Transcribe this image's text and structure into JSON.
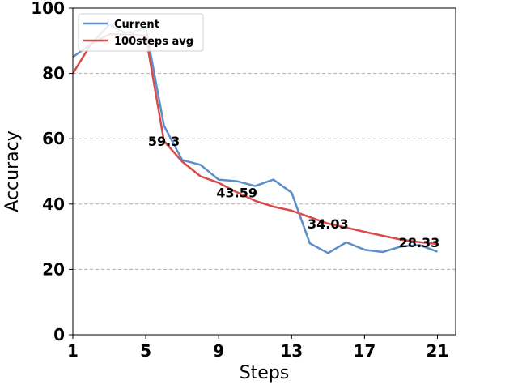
{
  "chart_data": {
    "type": "line",
    "xlabel": "Steps",
    "ylabel": "Accuracy",
    "xlim": [
      1,
      22
    ],
    "ylim": [
      0,
      100
    ],
    "xticks": [
      1,
      5,
      9,
      13,
      17,
      21
    ],
    "yticks": [
      0,
      20,
      40,
      60,
      80,
      100
    ],
    "grid": "horizontal dashed",
    "legend_position": "top-left",
    "x": [
      1,
      2,
      3,
      4,
      5,
      6,
      7,
      8,
      9,
      10,
      11,
      12,
      13,
      14,
      15,
      16,
      17,
      18,
      19,
      20,
      21
    ],
    "series": [
      {
        "name": "Current",
        "color": "#5b8fc9",
        "values": [
          85,
          89,
          95,
          92,
          94,
          64,
          53.5,
          52,
          47.5,
          47,
          45.5,
          47.5,
          43.5,
          28,
          25,
          28.3,
          26,
          25.3,
          27,
          27.5,
          25.4
        ]
      },
      {
        "name": "100steps avg",
        "color": "#d94b4b",
        "values": [
          80,
          89,
          92,
          92,
          91.5,
          59.3,
          53,
          48.5,
          46.5,
          43.59,
          41,
          39.2,
          38,
          36,
          34.03,
          32.8,
          31.5,
          30.3,
          29.1,
          28.33,
          27.8
        ]
      }
    ],
    "annotations": [
      {
        "x": 6,
        "y": 59.3,
        "text": "59.3"
      },
      {
        "x": 10,
        "y": 43.59,
        "text": "43.59"
      },
      {
        "x": 15,
        "y": 34.03,
        "text": "34.03"
      },
      {
        "x": 20,
        "y": 28.33,
        "text": "28.33"
      }
    ]
  }
}
